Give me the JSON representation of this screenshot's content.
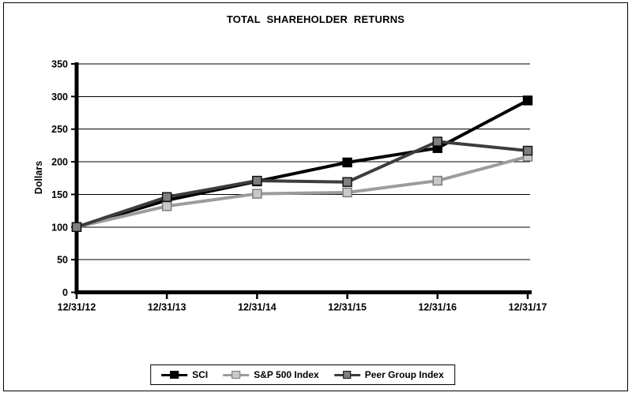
{
  "chart_data": {
    "type": "line",
    "title": "TOTAL SHAREHOLDER RETURNS",
    "ylabel": "Dollars",
    "categories": [
      "12/31/12",
      "12/31/13",
      "12/31/14",
      "12/31/15",
      "12/31/16",
      "12/31/17"
    ],
    "series": [
      {
        "id": "sci",
        "name": "SCI",
        "values": [
          100,
          141,
          170,
          199,
          221,
          294
        ],
        "line_color": "#000000",
        "marker_fill": "#000000",
        "marker_border": "#000000"
      },
      {
        "id": "sp500",
        "name": "S&P 500 Index",
        "values": [
          100,
          132,
          151,
          153,
          171,
          208
        ],
        "line_color": "#9c9c9c",
        "marker_fill": "#c8c8c8",
        "marker_border": "#777777"
      },
      {
        "id": "peer",
        "name": "Peer Group Index",
        "values": [
          100,
          146,
          171,
          169,
          231,
          217
        ],
        "line_color": "#3d3d3d",
        "marker_fill": "#7f7f7f",
        "marker_border": "#0d0d0d"
      }
    ],
    "ylim": [
      0,
      350
    ],
    "yticks": [
      0,
      50,
      100,
      150,
      200,
      250,
      300,
      350
    ],
    "grid": "horizontal",
    "legend_position": "bottom"
  }
}
